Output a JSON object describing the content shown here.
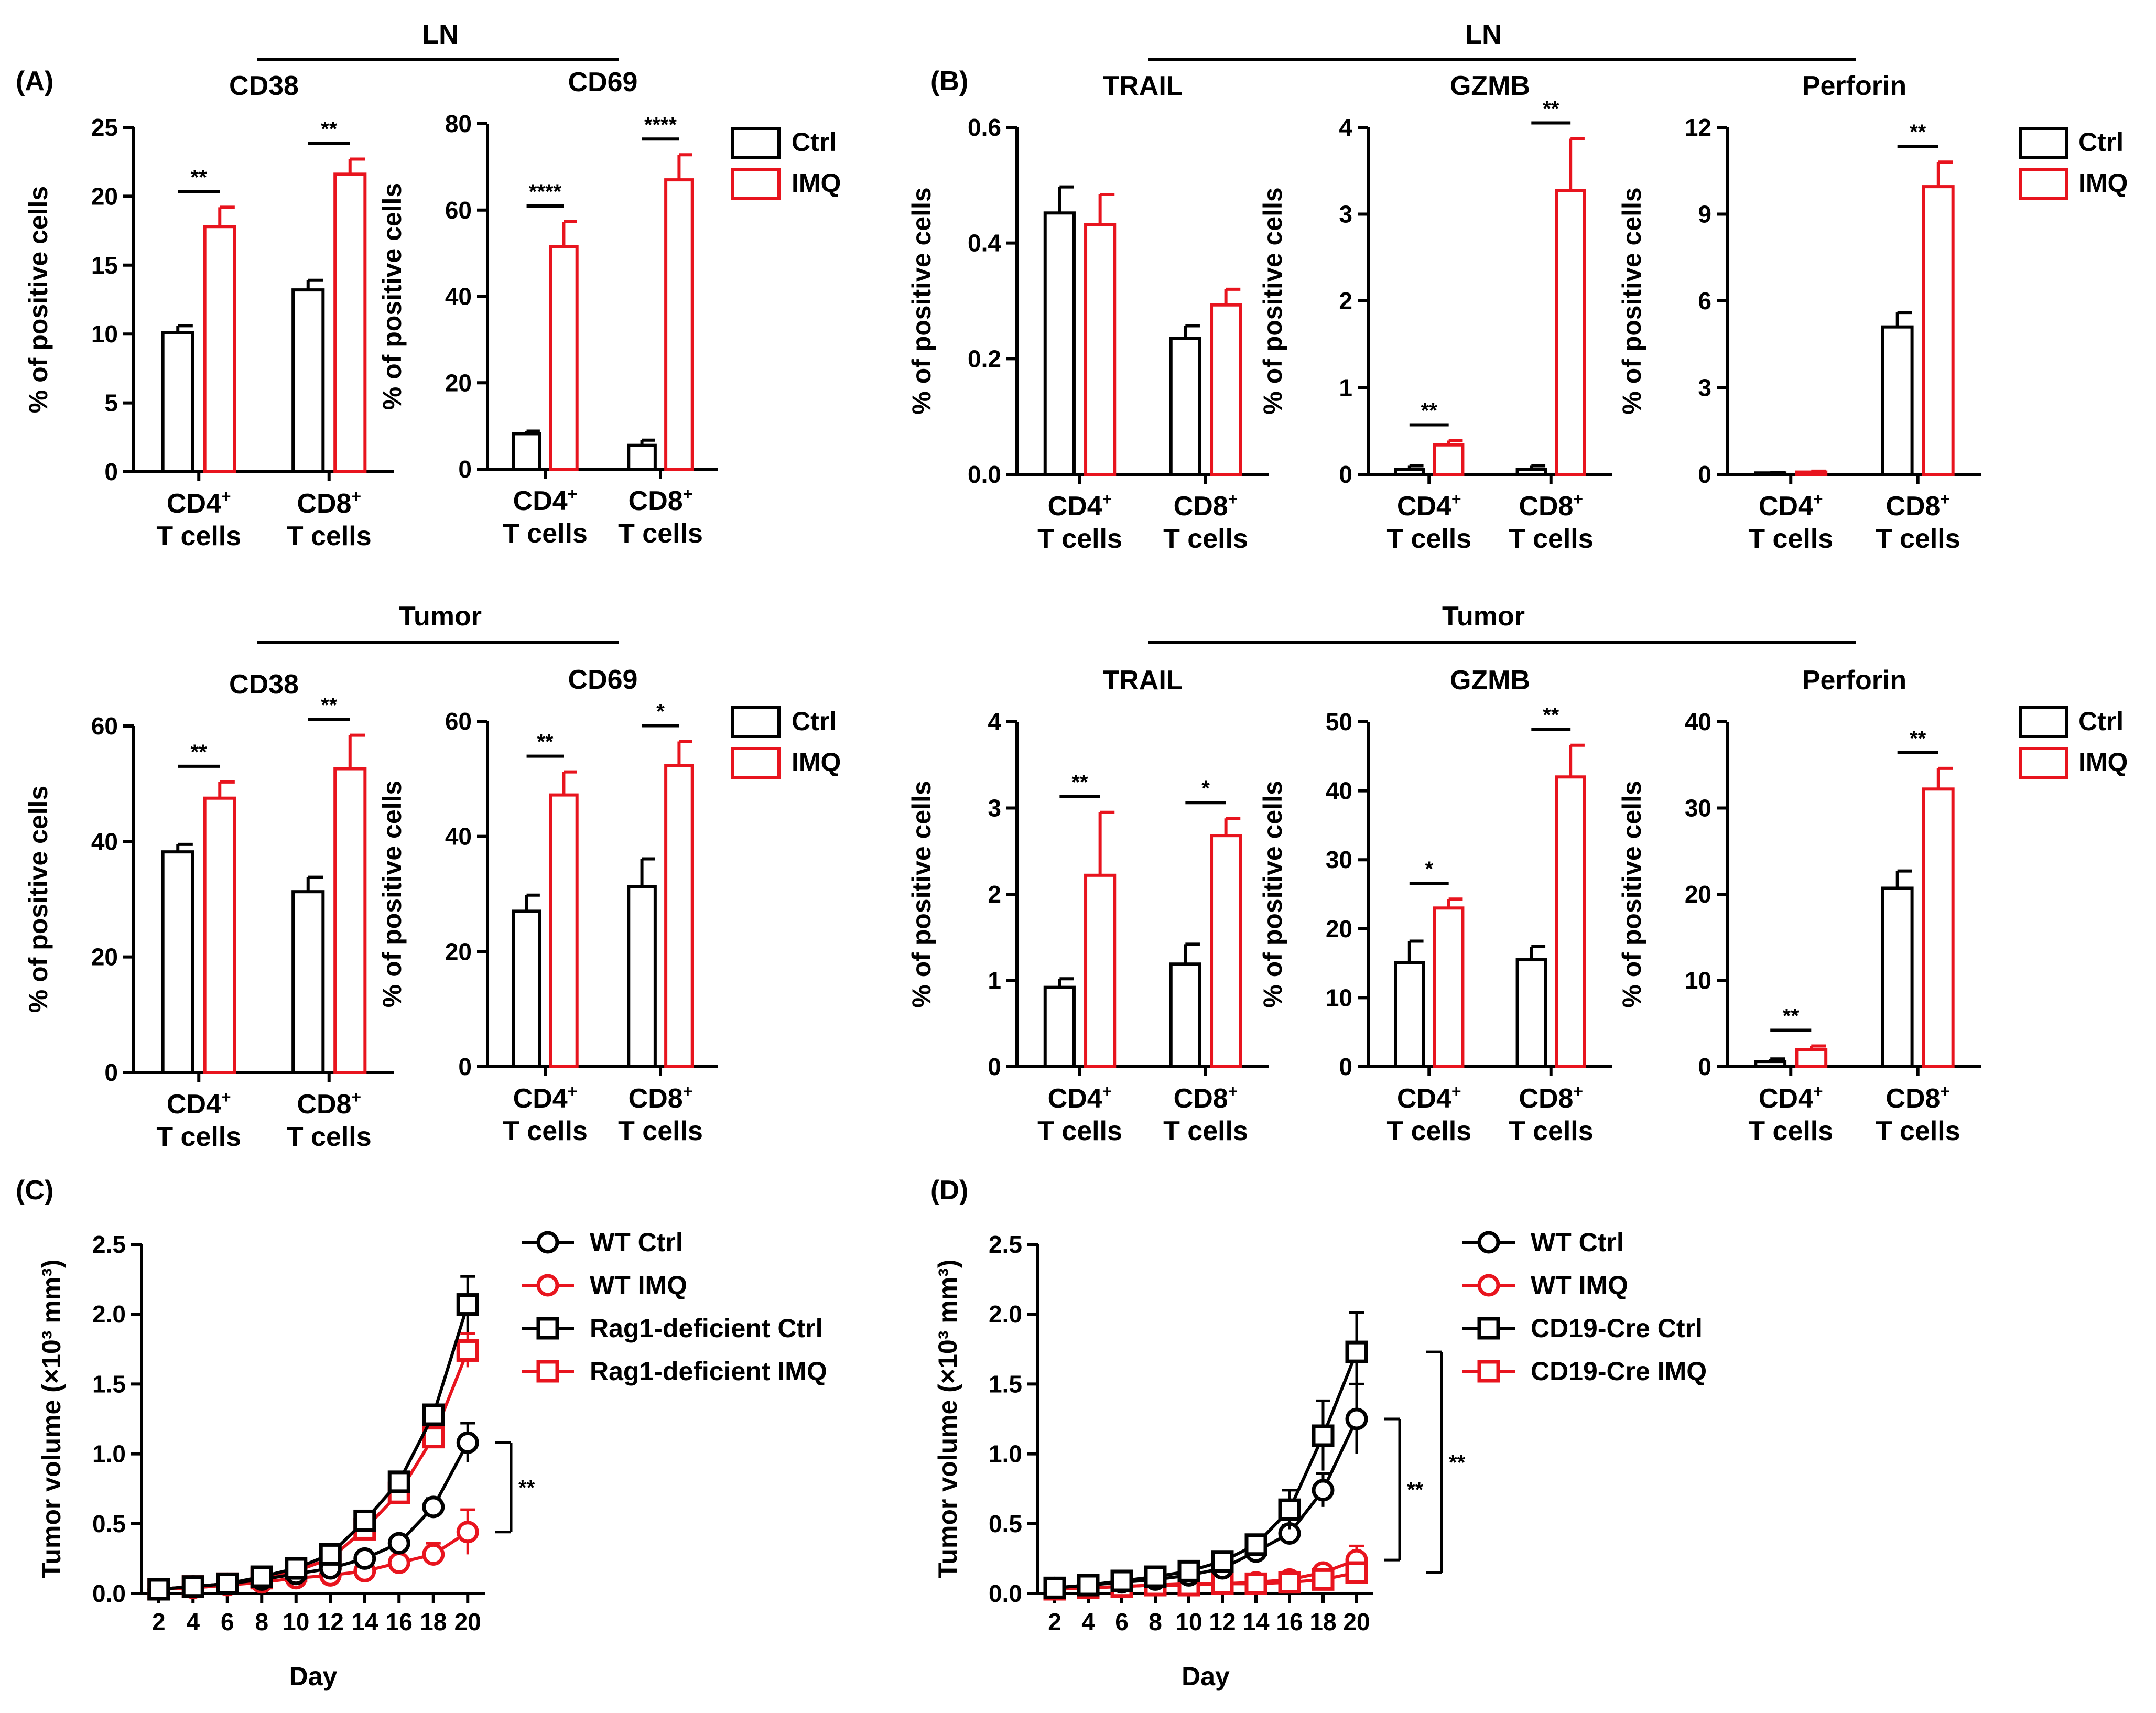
{
  "colors": {
    "ctrl": "#000000",
    "imq": "#e8141e"
  },
  "panels": [
    "(A)",
    "(B)",
    "(C)",
    "(D)"
  ],
  "sections": {
    "ln_a": "LN",
    "tumor_a": "Tumor",
    "ln_b": "LN",
    "tumor_b": "Tumor"
  },
  "legend_bar": {
    "ctrl": "Ctrl",
    "imq": "IMQ"
  },
  "legend_c": [
    "WT Ctrl",
    "WT IMQ",
    "Rag1-deficient Ctrl",
    "Rag1-deficient IMQ"
  ],
  "legend_d": [
    "WT Ctrl",
    "WT IMQ",
    "CD19-Cre Ctrl",
    "CD19-Cre IMQ"
  ],
  "chart_data": [
    {
      "type": "bar",
      "id": "a-ln-cd38",
      "title": "CD38",
      "section": "LN",
      "ylabel": "% of positive cells",
      "categories": [
        "CD4+ T cells",
        "CD8+ T cells"
      ],
      "ylim": [
        0,
        25
      ],
      "yticks": [
        0,
        5,
        10,
        15,
        20,
        25
      ],
      "series": [
        {
          "name": "Ctrl",
          "values": [
            10.1,
            13.2
          ],
          "errors": [
            0.5,
            0.7
          ]
        },
        {
          "name": "IMQ",
          "values": [
            17.8,
            21.6
          ],
          "errors": [
            1.4,
            1.1
          ]
        }
      ],
      "significance": [
        "**",
        "**"
      ]
    },
    {
      "type": "bar",
      "id": "a-ln-cd69",
      "title": "CD69",
      "section": "LN",
      "ylabel": "% of positive cells",
      "categories": [
        "CD4+ T cells",
        "CD8+ T cells"
      ],
      "ylim": [
        0,
        80
      ],
      "yticks": [
        0,
        20,
        40,
        60,
        80
      ],
      "series": [
        {
          "name": "Ctrl",
          "values": [
            8.2,
            5.5
          ],
          "errors": [
            0.6,
            1.2
          ]
        },
        {
          "name": "IMQ",
          "values": [
            51.5,
            67.0
          ],
          "errors": [
            5.8,
            5.8
          ]
        }
      ],
      "significance": [
        "****",
        "****"
      ]
    },
    {
      "type": "bar",
      "id": "b-ln-trail",
      "title": "TRAIL",
      "section": "LN",
      "ylabel": "% of positive cells",
      "categories": [
        "CD4+ T cells",
        "CD8+ T cells"
      ],
      "ylim": [
        0,
        0.6
      ],
      "yticks": [
        0.0,
        0.2,
        0.4,
        0.6
      ],
      "series": [
        {
          "name": "Ctrl",
          "values": [
            0.452,
            0.235
          ],
          "errors": [
            0.045,
            0.022
          ]
        },
        {
          "name": "IMQ",
          "values": [
            0.432,
            0.293
          ],
          "errors": [
            0.052,
            0.027
          ]
        }
      ],
      "significance": [
        "",
        ""
      ]
    },
    {
      "type": "bar",
      "id": "b-ln-gzmb",
      "title": "GZMB",
      "section": "LN",
      "ylabel": "% of positive cells",
      "categories": [
        "CD4+ T cells",
        "CD8+ T cells"
      ],
      "ylim": [
        0,
        4
      ],
      "yticks": [
        0,
        1,
        2,
        3,
        4
      ],
      "series": [
        {
          "name": "Ctrl",
          "values": [
            0.06,
            0.06
          ],
          "errors": [
            0.04,
            0.04
          ]
        },
        {
          "name": "IMQ",
          "values": [
            0.34,
            3.27
          ],
          "errors": [
            0.05,
            0.6
          ]
        }
      ],
      "significance": [
        "**",
        "**"
      ]
    },
    {
      "type": "bar",
      "id": "b-ln-perforin",
      "title": "Perforin",
      "section": "LN",
      "ylabel": "% of positive cells",
      "categories": [
        "CD4+ T cells",
        "CD8+ T cells"
      ],
      "ylim": [
        0,
        12
      ],
      "yticks": [
        0,
        3,
        6,
        9,
        12
      ],
      "series": [
        {
          "name": "Ctrl",
          "values": [
            0.05,
            5.1
          ],
          "errors": [
            0.02,
            0.5
          ]
        },
        {
          "name": "IMQ",
          "values": [
            0.08,
            9.95
          ],
          "errors": [
            0.03,
            0.85
          ]
        }
      ],
      "significance": [
        "",
        "**"
      ]
    },
    {
      "type": "bar",
      "id": "a-tumor-cd38",
      "title": "CD38",
      "section": "Tumor",
      "ylabel": "% of positive cells",
      "categories": [
        "CD4+ T cells",
        "CD8+ T cells"
      ],
      "ylim": [
        0,
        60
      ],
      "yticks": [
        0,
        20,
        40,
        60
      ],
      "series": [
        {
          "name": "Ctrl",
          "values": [
            38.2,
            31.3
          ],
          "errors": [
            1.3,
            2.5
          ]
        },
        {
          "name": "IMQ",
          "values": [
            47.5,
            52.6
          ],
          "errors": [
            2.8,
            5.8
          ]
        }
      ],
      "significance": [
        "**",
        "**"
      ]
    },
    {
      "type": "bar",
      "id": "a-tumor-cd69",
      "title": "CD69",
      "section": "Tumor",
      "ylabel": "% of positive cells",
      "categories": [
        "CD4+ T cells",
        "CD8+ T cells"
      ],
      "ylim": [
        0,
        60
      ],
      "yticks": [
        0,
        20,
        40,
        60
      ],
      "series": [
        {
          "name": "Ctrl",
          "values": [
            27.0,
            31.3
          ],
          "errors": [
            2.8,
            4.8
          ]
        },
        {
          "name": "IMQ",
          "values": [
            47.2,
            52.3
          ],
          "errors": [
            4.0,
            4.2
          ]
        }
      ],
      "significance": [
        "**",
        "*"
      ]
    },
    {
      "type": "bar",
      "id": "b-tumor-trail",
      "title": "TRAIL",
      "section": "Tumor",
      "ylabel": "% of positive cells",
      "categories": [
        "CD4+ T cells",
        "CD8+ T cells"
      ],
      "ylim": [
        0,
        4
      ],
      "yticks": [
        0,
        1,
        2,
        3,
        4
      ],
      "series": [
        {
          "name": "Ctrl",
          "values": [
            0.92,
            1.19
          ],
          "errors": [
            0.1,
            0.23
          ]
        },
        {
          "name": "IMQ",
          "values": [
            2.22,
            2.68
          ],
          "errors": [
            0.73,
            0.2
          ]
        }
      ],
      "significance": [
        "**",
        "*"
      ]
    },
    {
      "type": "bar",
      "id": "b-tumor-gzmb",
      "title": "GZMB",
      "section": "Tumor",
      "ylabel": "% of positive cells",
      "categories": [
        "CD4+ T cells",
        "CD8+ T cells"
      ],
      "ylim": [
        0,
        50
      ],
      "yticks": [
        0,
        10,
        20,
        30,
        40,
        50
      ],
      "series": [
        {
          "name": "Ctrl",
          "values": [
            15.1,
            15.5
          ],
          "errors": [
            3.1,
            1.9
          ]
        },
        {
          "name": "IMQ",
          "values": [
            23.0,
            42.0
          ],
          "errors": [
            1.3,
            4.6
          ]
        }
      ],
      "significance": [
        "*",
        "**"
      ]
    },
    {
      "type": "bar",
      "id": "b-tumor-perforin",
      "title": "Perforin",
      "section": "Tumor",
      "ylabel": "% of positive cells",
      "categories": [
        "CD4+ T cells",
        "CD8+ T cells"
      ],
      "ylim": [
        0,
        40
      ],
      "yticks": [
        0,
        10,
        20,
        30,
        40
      ],
      "series": [
        {
          "name": "Ctrl",
          "values": [
            0.6,
            20.7
          ],
          "errors": [
            0.3,
            2.0
          ]
        },
        {
          "name": "IMQ",
          "values": [
            2.0,
            32.2
          ],
          "errors": [
            0.4,
            2.4
          ]
        }
      ],
      "significance": [
        "**",
        "**"
      ]
    },
    {
      "type": "line",
      "id": "c-tumor-growth",
      "panel": "(C)",
      "xlabel": "Day",
      "ylabel": "Tumor volume (×10³ mm³)",
      "ylim": [
        0,
        2.5
      ],
      "yticks": [
        0.0,
        0.5,
        1.0,
        1.5,
        2.0,
        2.5
      ],
      "xlim": [
        1,
        21
      ],
      "x": [
        2,
        4,
        6,
        8,
        10,
        12,
        14,
        16,
        18,
        20
      ],
      "series": [
        {
          "name": "WT Ctrl",
          "marker": "circle",
          "color": "#000000",
          "values": [
            0.03,
            0.05,
            0.07,
            0.1,
            0.14,
            0.18,
            0.25,
            0.36,
            0.62,
            1.08
          ],
          "errors": [
            0.01,
            0.01,
            0.01,
            0.02,
            0.02,
            0.02,
            0.03,
            0.04,
            0.06,
            0.14
          ]
        },
        {
          "name": "WT IMQ",
          "marker": "circle",
          "color": "#e8141e",
          "values": [
            0.03,
            0.04,
            0.06,
            0.08,
            0.11,
            0.13,
            0.16,
            0.22,
            0.28,
            0.44
          ],
          "errors": [
            0.01,
            0.01,
            0.01,
            0.01,
            0.02,
            0.02,
            0.03,
            0.04,
            0.08,
            0.16
          ]
        },
        {
          "name": "Rag1-deficient Ctrl",
          "marker": "square",
          "color": "#000000",
          "values": [
            0.03,
            0.05,
            0.07,
            0.12,
            0.18,
            0.28,
            0.52,
            0.8,
            1.28,
            2.07
          ],
          "errors": [
            0.01,
            0.01,
            0.01,
            0.02,
            0.03,
            0.03,
            0.04,
            0.05,
            0.07,
            0.2
          ]
        },
        {
          "name": "Rag1-deficient IMQ",
          "marker": "square",
          "color": "#e8141e",
          "values": [
            0.03,
            0.05,
            0.07,
            0.11,
            0.16,
            0.25,
            0.46,
            0.72,
            1.12,
            1.74
          ],
          "errors": [
            0.01,
            0.01,
            0.01,
            0.02,
            0.02,
            0.03,
            0.04,
            0.05,
            0.07,
            0.12
          ]
        }
      ],
      "significance": [
        {
          "label": "**",
          "from": 1.08,
          "to": 0.44
        }
      ]
    },
    {
      "type": "line",
      "id": "d-tumor-growth",
      "panel": "(D)",
      "xlabel": "Day",
      "ylabel": "Tumor volume (×10³ mm³)",
      "ylim": [
        0,
        2.5
      ],
      "yticks": [
        0.0,
        0.5,
        1.0,
        1.5,
        2.0,
        2.5
      ],
      "xlim": [
        1,
        21
      ],
      "x": [
        2,
        4,
        6,
        8,
        10,
        12,
        14,
        16,
        18,
        20
      ],
      "series": [
        {
          "name": "WT Ctrl",
          "marker": "circle",
          "color": "#000000",
          "values": [
            0.04,
            0.06,
            0.08,
            0.1,
            0.13,
            0.18,
            0.3,
            0.43,
            0.74,
            1.25
          ],
          "errors": [
            0.01,
            0.01,
            0.01,
            0.02,
            0.02,
            0.03,
            0.04,
            0.06,
            0.12,
            0.25
          ]
        },
        {
          "name": "WT IMQ",
          "marker": "circle",
          "color": "#e8141e",
          "values": [
            0.03,
            0.04,
            0.05,
            0.06,
            0.07,
            0.07,
            0.08,
            0.1,
            0.15,
            0.24
          ],
          "errors": [
            0.01,
            0.01,
            0.01,
            0.01,
            0.01,
            0.01,
            0.01,
            0.02,
            0.04,
            0.1
          ]
        },
        {
          "name": "CD19-Cre Ctrl",
          "marker": "square",
          "color": "#000000",
          "values": [
            0.04,
            0.06,
            0.09,
            0.12,
            0.16,
            0.23,
            0.35,
            0.6,
            1.13,
            1.73
          ],
          "errors": [
            0.01,
            0.01,
            0.01,
            0.02,
            0.02,
            0.03,
            0.04,
            0.14,
            0.25,
            0.28
          ]
        },
        {
          "name": "CD19-Cre IMQ",
          "marker": "square",
          "color": "#e8141e",
          "values": [
            0.03,
            0.04,
            0.05,
            0.06,
            0.06,
            0.07,
            0.07,
            0.08,
            0.1,
            0.15
          ],
          "errors": [
            0.01,
            0.01,
            0.01,
            0.01,
            0.01,
            0.01,
            0.01,
            0.02,
            0.03,
            0.05
          ]
        }
      ],
      "significance": [
        {
          "label": "**",
          "from": 1.25,
          "to": 0.24
        },
        {
          "label": "**",
          "from": 1.73,
          "to": 0.15
        }
      ]
    }
  ]
}
